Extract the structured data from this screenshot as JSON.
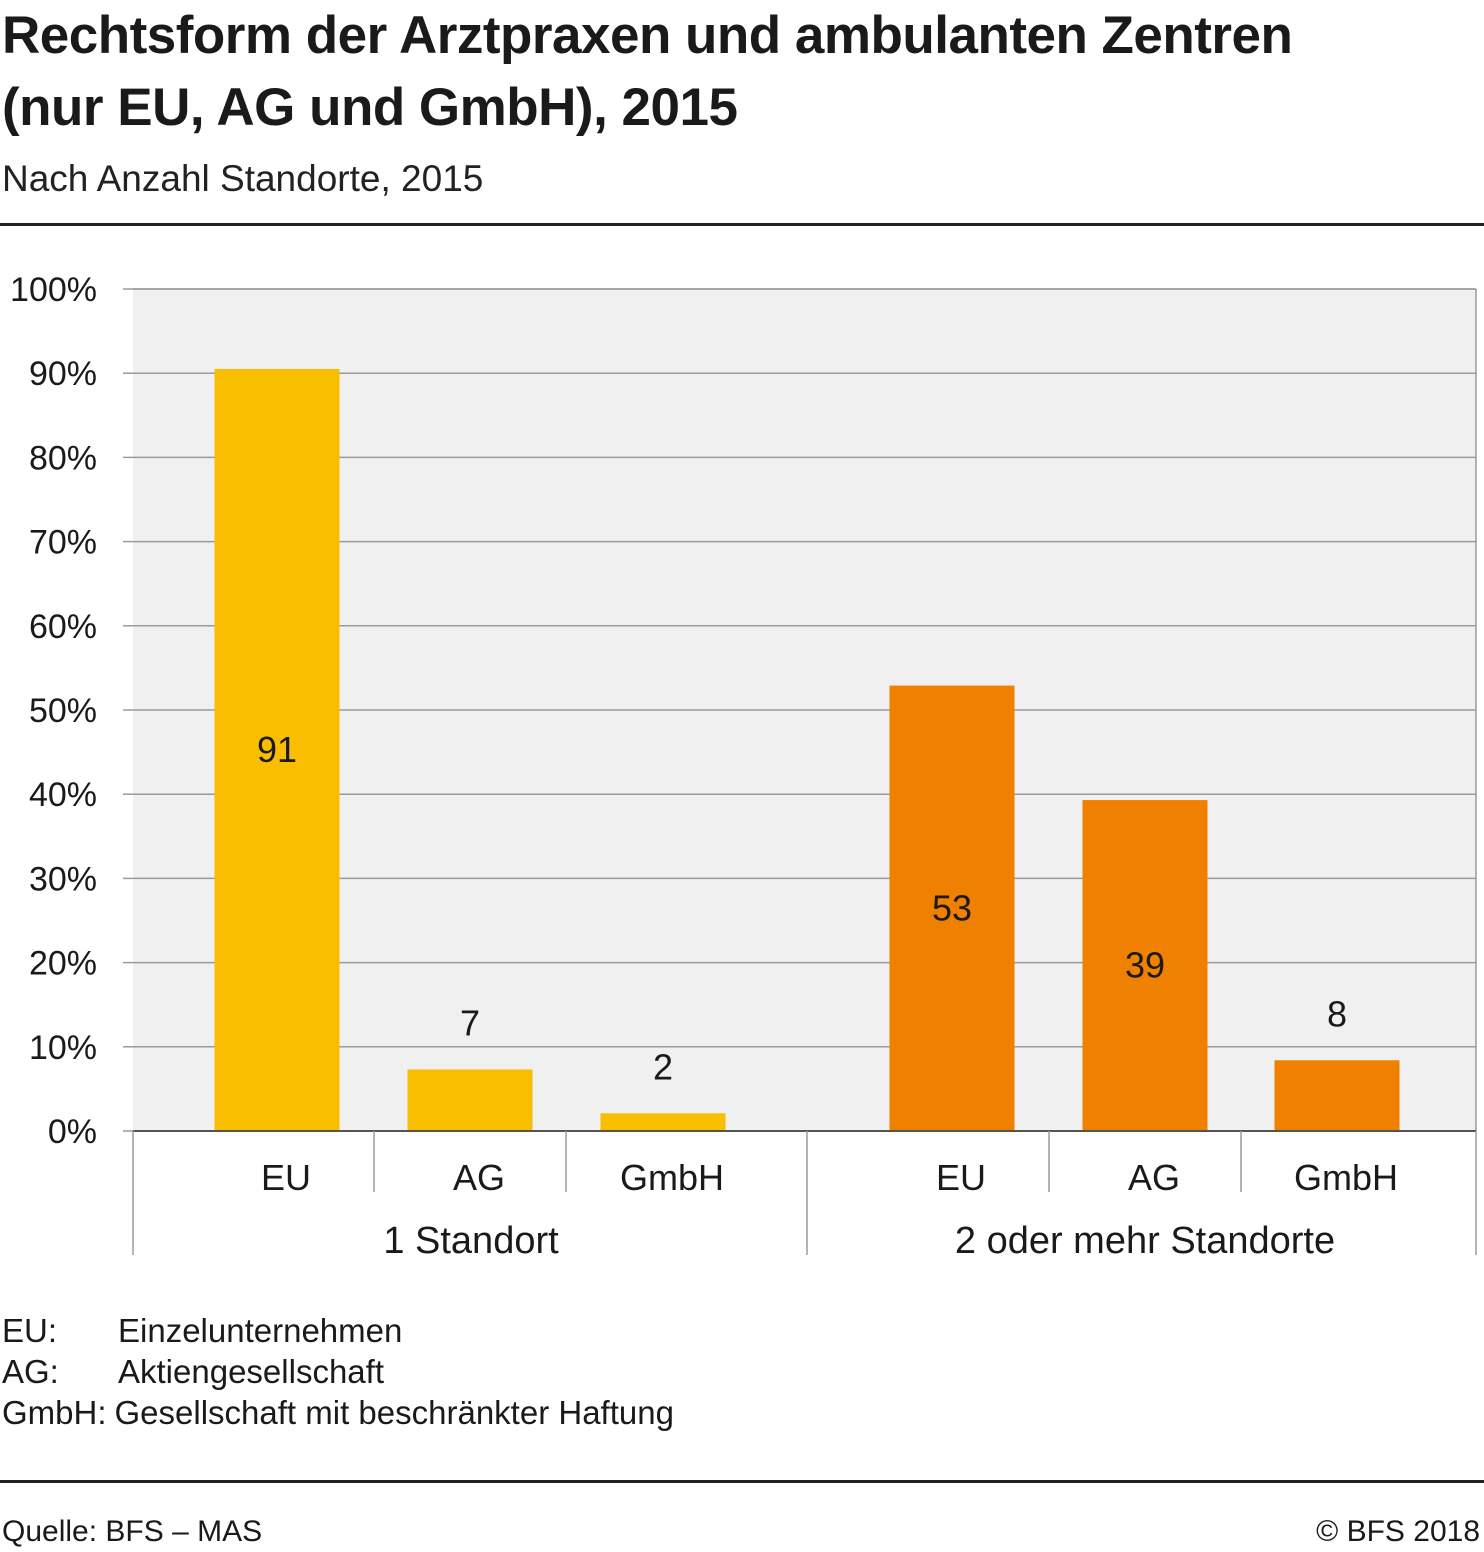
{
  "title": "Rechtsform der Arztpraxen und ambulanten Zentren (nur EU, AG und GmbH), 2015",
  "subtitle": "Nach Anzahl Standorte, 2015",
  "chart_data": {
    "type": "bar",
    "ylim": [
      0,
      100
    ],
    "yticks": [
      0,
      10,
      20,
      30,
      40,
      50,
      60,
      70,
      80,
      90,
      100
    ],
    "ytick_labels": [
      "0%",
      "10%",
      "20%",
      "30%",
      "40%",
      "50%",
      "60%",
      "70%",
      "80%",
      "90%",
      "100%"
    ],
    "groups": [
      {
        "label": "1 Standort",
        "color": "#F9BE00",
        "categories": [
          "EU",
          "AG",
          "GmbH"
        ],
        "values": [
          90.5,
          7.3,
          2.1
        ],
        "value_labels": [
          "91",
          "7",
          "2"
        ]
      },
      {
        "label": "2 oder mehr Standorte",
        "color": "#F08000",
        "categories": [
          "EU",
          "AG",
          "GmbH"
        ],
        "values": [
          52.9,
          39.3,
          8.4
        ],
        "value_labels": [
          "53",
          "39",
          "8"
        ]
      }
    ],
    "plot_background": "#F0F0F0",
    "grid_color": "#9A9A9A",
    "grid": true
  },
  "legend": [
    {
      "key": "EU:",
      "text": "Einzelunternehmen"
    },
    {
      "key": "AG:",
      "text": "Aktiengesellschaft"
    },
    {
      "key": "GmbH:",
      "text": "Gesellschaft mit beschränkter Haftung"
    }
  ],
  "footer": {
    "source": "Quelle: BFS – MAS",
    "copyright": "© BFS 2018"
  }
}
